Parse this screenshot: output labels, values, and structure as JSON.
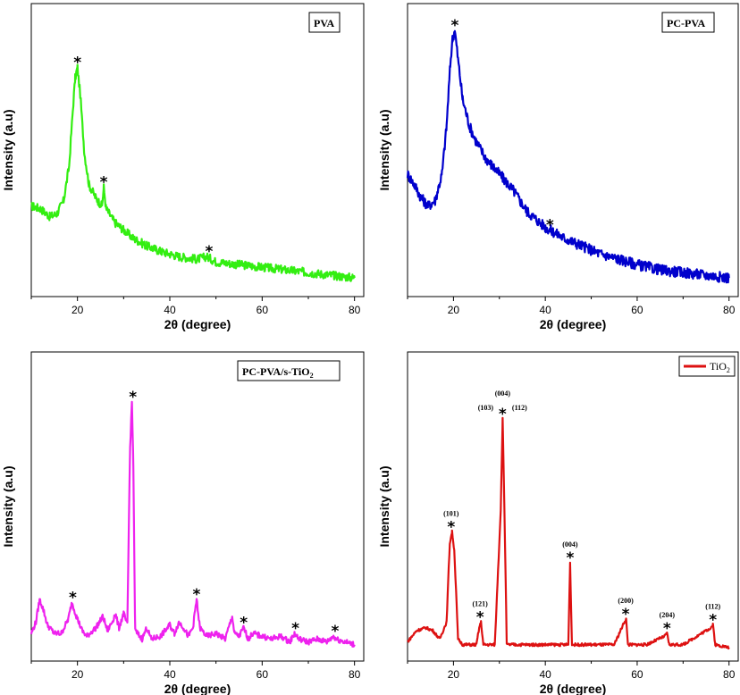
{
  "chart_data": [
    {
      "type": "line",
      "legend": "PVA",
      "legend_style": "boxed-label-top-right",
      "xlabel": "2θ (degree)",
      "ylabel": "Intensity (a.u)",
      "xlim": [
        10,
        82
      ],
      "ylim": [
        0,
        100
      ],
      "x_ticks": [
        "20",
        "40",
        "60",
        "80"
      ],
      "series_color": "#33ee11",
      "series": [
        {
          "x": [
            10,
            12,
            14,
            15.5,
            17,
            18.2,
            19,
            19.5,
            20,
            20.6,
            21.5,
            22.5,
            24,
            25.3,
            25.7,
            26.2,
            28,
            30,
            32,
            35,
            38,
            42,
            46,
            48,
            50,
            55,
            60,
            65,
            70,
            75,
            80
          ],
          "y": [
            30,
            29,
            26,
            27,
            32,
            45,
            66,
            78,
            82,
            72,
            50,
            38,
            33,
            30,
            37,
            29,
            24,
            21,
            18,
            15,
            13,
            11,
            10,
            11,
            9,
            8,
            7,
            6,
            5,
            4,
            3
          ],
          "noise": 1.6
        }
      ],
      "peak_markers": [
        {
          "x": 20,
          "y": 82,
          "label": "*"
        },
        {
          "x": 25.7,
          "y": 37,
          "label": "*"
        },
        {
          "x": 48.5,
          "y": 11,
          "label": "*"
        }
      ]
    },
    {
      "type": "line",
      "legend": "PC-PVA",
      "legend_style": "boxed-label-top-right",
      "xlabel": "2θ (degree)",
      "ylabel": "Intensity (a.u)",
      "xlim": [
        10,
        82
      ],
      "ylim": [
        0,
        100
      ],
      "x_ticks": [
        "20",
        "40",
        "60",
        "80"
      ],
      "series_color": "#0000cc",
      "series": [
        {
          "x": [
            10,
            11.5,
            13,
            14.5,
            16,
            17.5,
            18.5,
            19.3,
            19.8,
            20.3,
            21,
            22,
            23.5,
            25,
            27,
            30,
            33,
            36,
            40,
            44,
            48,
            52,
            56,
            60,
            65,
            70,
            75,
            80
          ],
          "y": [
            42,
            38,
            33,
            30,
            32,
            42,
            60,
            83,
            93,
            96,
            85,
            70,
            60,
            54,
            48,
            42,
            36,
            28,
            22,
            18,
            15,
            12,
            10,
            8,
            6,
            5,
            4,
            3
          ],
          "noise": 2.0
        }
      ],
      "peak_markers": [
        {
          "x": 20.3,
          "y": 96,
          "label": "*"
        },
        {
          "x": 41,
          "y": 21,
          "label": "*"
        }
      ]
    },
    {
      "type": "line",
      "legend": "PC-PVA/s-TiO",
      "legend_subscript": "2",
      "legend_style": "boxed-label-top-right",
      "xlabel": "2θ (degree)",
      "ylabel": "Intensity (a.u)",
      "xlim": [
        10,
        82
      ],
      "ylim": [
        0,
        100
      ],
      "x_ticks": [
        "20",
        "40",
        "60",
        "80"
      ],
      "series_color": "#ee22ee",
      "series": [
        {
          "x": [
            10,
            11,
            11.8,
            12.5,
            13.5,
            15,
            16.5,
            18,
            18.8,
            19.8,
            21,
            22,
            24,
            25.5,
            26.5,
            27.5,
            28.2,
            29,
            30,
            30.8,
            31.4,
            31.8,
            32.1,
            32.5,
            33,
            34,
            35,
            36,
            38,
            40,
            41,
            42,
            43,
            44,
            45,
            45.8,
            46.5,
            48,
            50,
            52,
            53.5,
            54,
            55,
            56,
            57,
            58,
            60,
            62,
            64,
            66,
            67,
            68,
            70,
            72,
            74,
            75.5,
            76,
            78,
            80
          ],
          "y": [
            6,
            10,
            18,
            15,
            9,
            6,
            6,
            11,
            17,
            12,
            7,
            5,
            8,
            12,
            7,
            10,
            13,
            8,
            13,
            9,
            72,
            88,
            65,
            7,
            6,
            4,
            8,
            4,
            5,
            9,
            6,
            10,
            8,
            5,
            8,
            18,
            8,
            5,
            6,
            4,
            12,
            6,
            5,
            8,
            4,
            6,
            5,
            4,
            5,
            3,
            6,
            4,
            3,
            4,
            3,
            5,
            4,
            3,
            2
          ],
          "noise": 1.0
        }
      ],
      "peak_markers": [
        {
          "x": 19,
          "y": 17,
          "label": "*"
        },
        {
          "x": 32,
          "y": 88,
          "label": "*"
        },
        {
          "x": 45.8,
          "y": 18,
          "label": "*"
        },
        {
          "x": 56,
          "y": 8,
          "label": "*"
        },
        {
          "x": 67.2,
          "y": 6,
          "label": "*"
        },
        {
          "x": 75.8,
          "y": 5,
          "label": "*"
        }
      ]
    },
    {
      "type": "line",
      "legend": "TiO",
      "legend_subscript": "2",
      "legend_style": "line-sample-top-right",
      "xlabel": "2θ (degree)",
      "ylabel": "Intensity (a.u)",
      "xlim": [
        10,
        82
      ],
      "ylim": [
        0,
        100
      ],
      "x_ticks": [
        "20",
        "40",
        "60",
        "80"
      ],
      "series_color": "#dd1111",
      "series": [
        {
          "x": [
            10,
            12,
            14,
            15.5,
            17,
            18.5,
            19.2,
            19.7,
            20.2,
            21,
            22,
            25,
            25.6,
            26,
            26.5,
            29,
            30.3,
            30.7,
            31.1,
            31.6,
            33,
            40,
            45,
            45.4,
            45.8,
            50,
            55,
            57.2,
            57.6,
            58,
            62,
            66,
            66.5,
            67,
            70,
            76,
            76.5,
            77,
            80
          ],
          "y": [
            3,
            7,
            8,
            7,
            4,
            10,
            38,
            42,
            35,
            4,
            2,
            2,
            8,
            10,
            2,
            2,
            50,
            82,
            50,
            2,
            2,
            2,
            2,
            31,
            2,
            2,
            2,
            10,
            11,
            2,
            2,
            5,
            6,
            2,
            2,
            8,
            9,
            2,
            1
          ],
          "noise": 0.5
        }
      ],
      "peak_markers": [
        {
          "x": 19.5,
          "y": 42,
          "label": "*",
          "hkl": "(101)"
        },
        {
          "x": 25.8,
          "y": 10,
          "label": "*",
          "hkl": "(121)"
        },
        {
          "x": 30.7,
          "y": 82,
          "label": "*",
          "hkl_top": "(004)",
          "hkl_left": "(103)",
          "hkl_right": "(112)"
        },
        {
          "x": 45.4,
          "y": 31,
          "label": "*",
          "hkl": "(004)"
        },
        {
          "x": 57.5,
          "y": 11,
          "label": "*",
          "hkl": "(200)"
        },
        {
          "x": 66.5,
          "y": 6,
          "label": "*",
          "hkl": "(204)"
        },
        {
          "x": 76.5,
          "y": 9,
          "label": "*",
          "hkl": "(112)"
        }
      ]
    }
  ]
}
